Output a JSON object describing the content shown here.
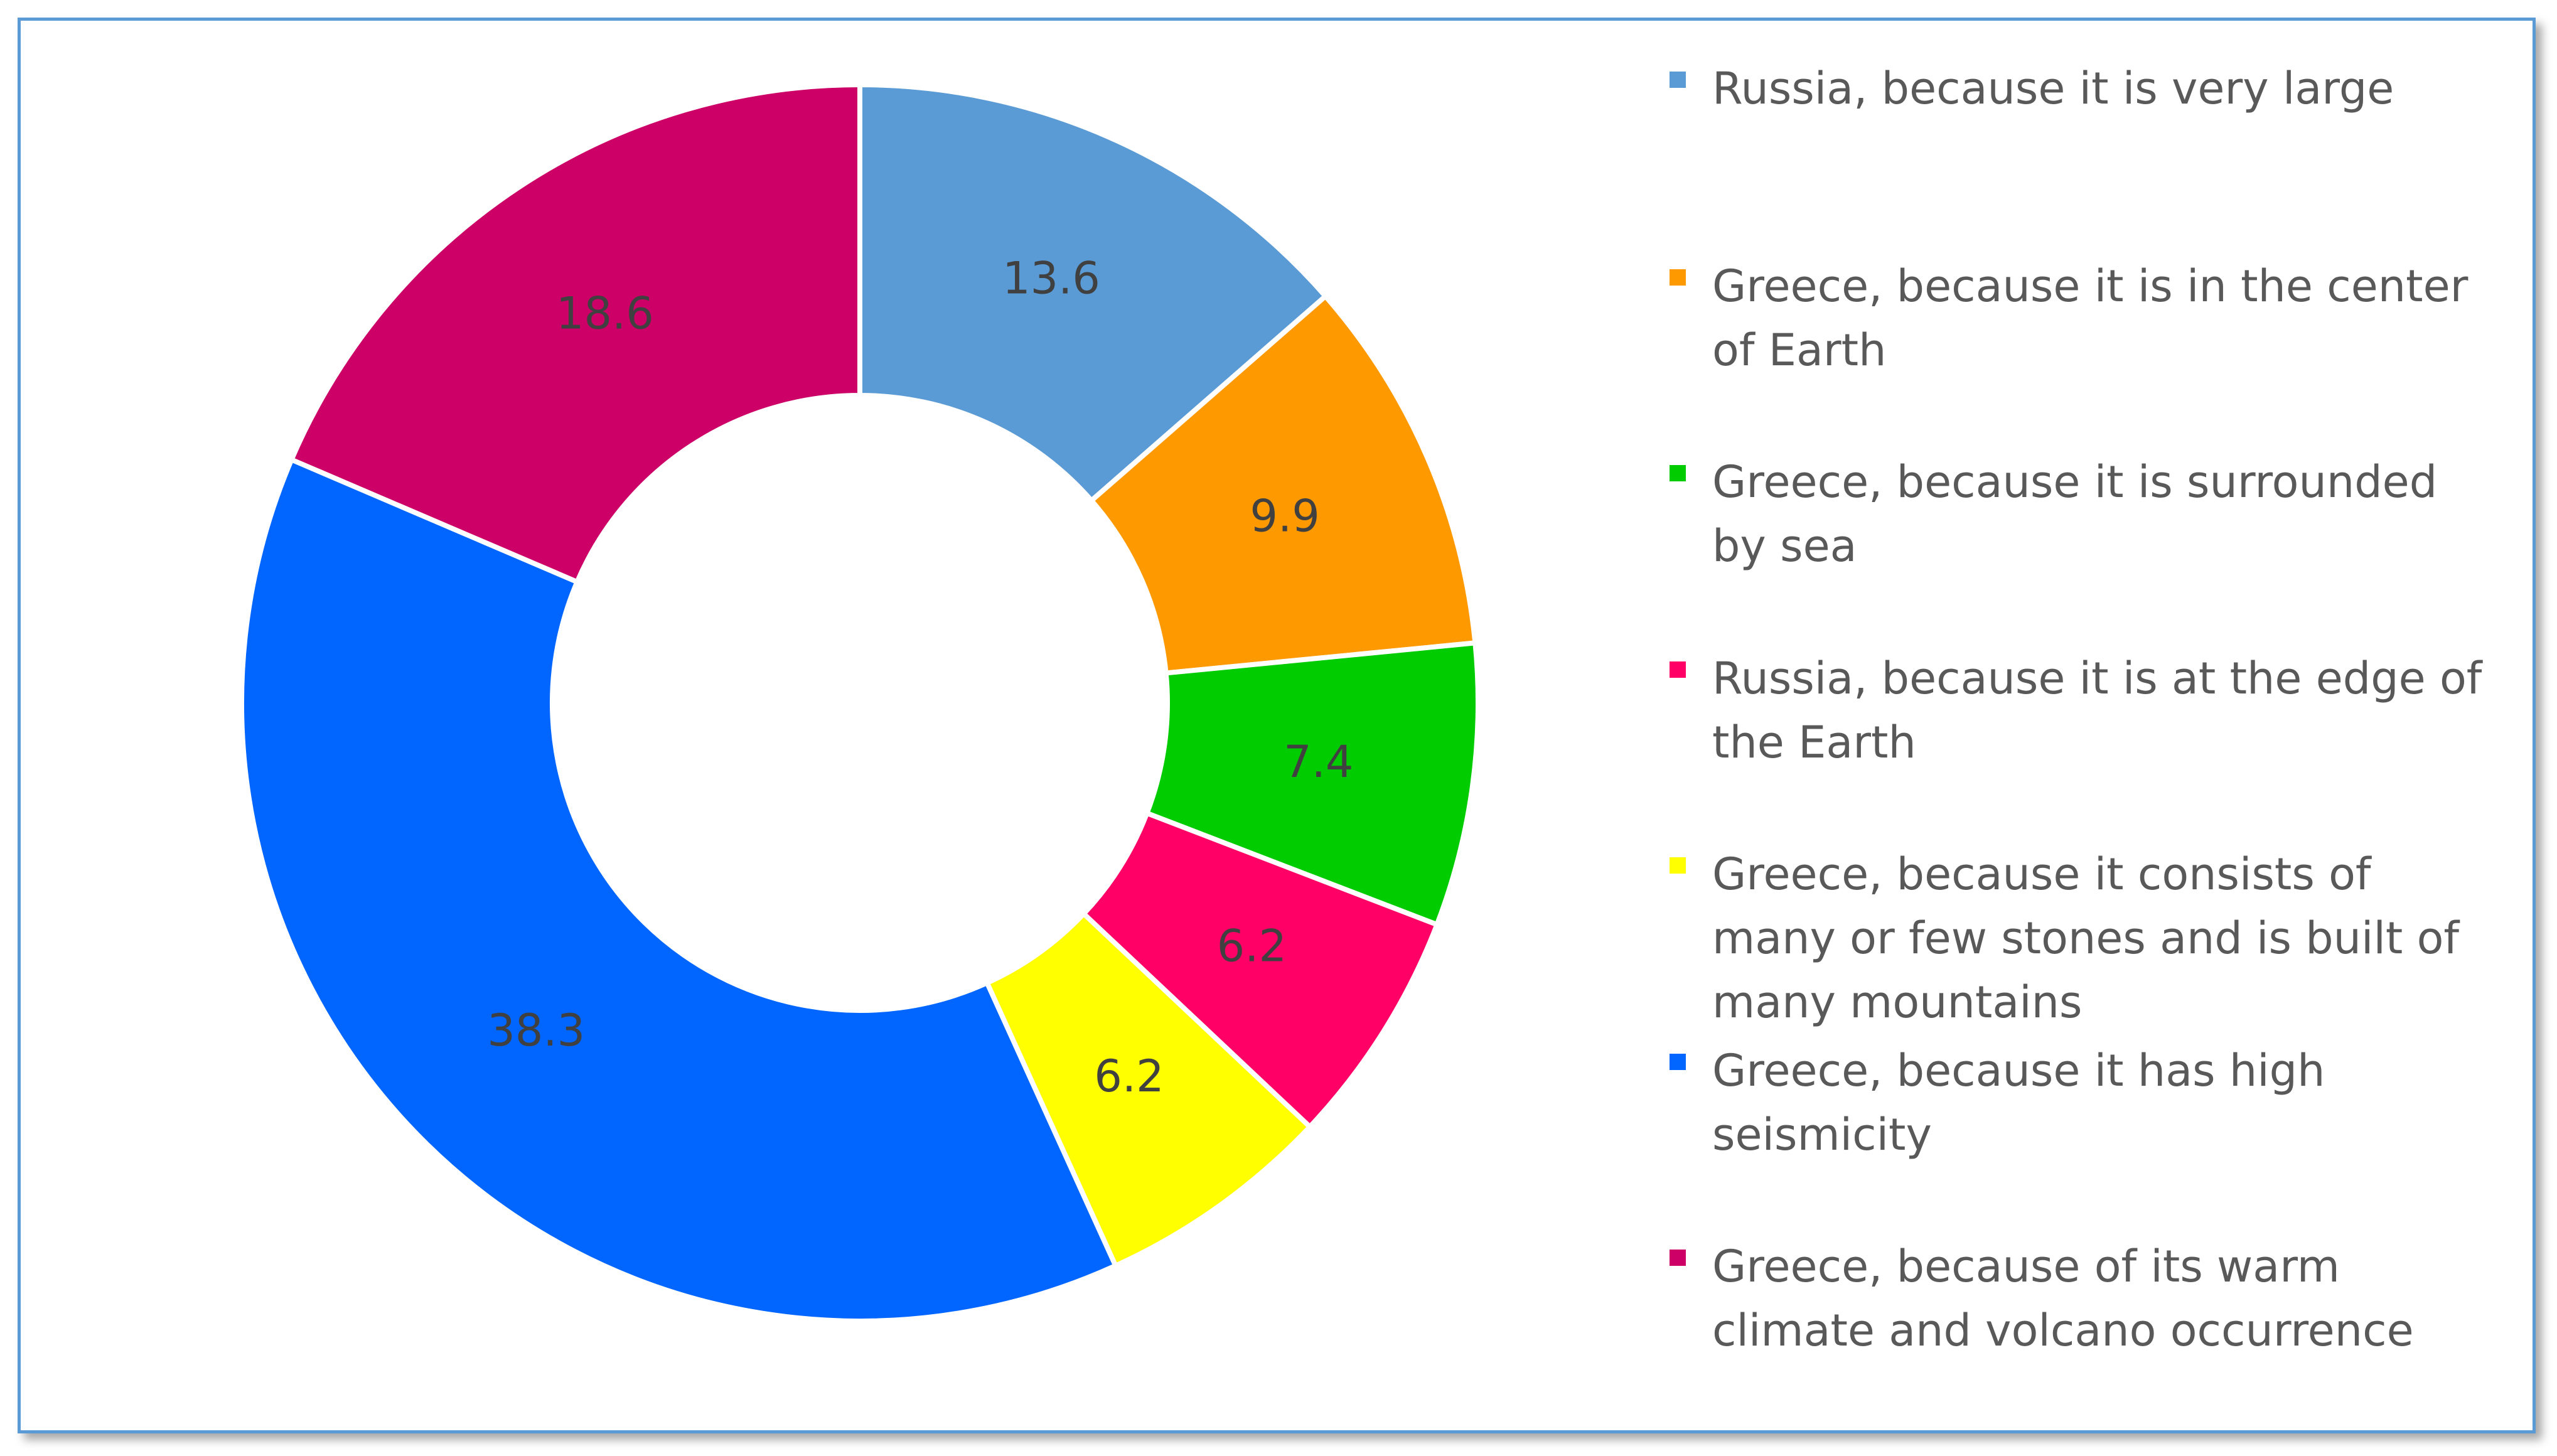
{
  "chart_data": {
    "type": "pie",
    "donut": true,
    "categories": [
      "Russia, because it is very large",
      "Greece, because it is in the center of Earth",
      "Greece, because it is surrounded by sea",
      "Russia, because it is at the edge of the Earth",
      "Greece, because it consists of many or few stones and is built of many mountains",
      "Greece, because it has high seismicity",
      "Greece, because of its warm climate and volcano occurrence"
    ],
    "values": [
      13.6,
      9.9,
      7.4,
      6.2,
      6.2,
      38.3,
      18.6
    ],
    "data_labels": [
      "13.6",
      "9.9",
      "7.4",
      "6.2",
      "6.2",
      "38.3",
      "18.6"
    ],
    "colors": [
      "#5b9bd5",
      "#ff9900",
      "#00cc00",
      "#ff0066",
      "#ffff00",
      "#0066ff",
      "#cc0066"
    ],
    "legend_position": "right",
    "title": ""
  }
}
